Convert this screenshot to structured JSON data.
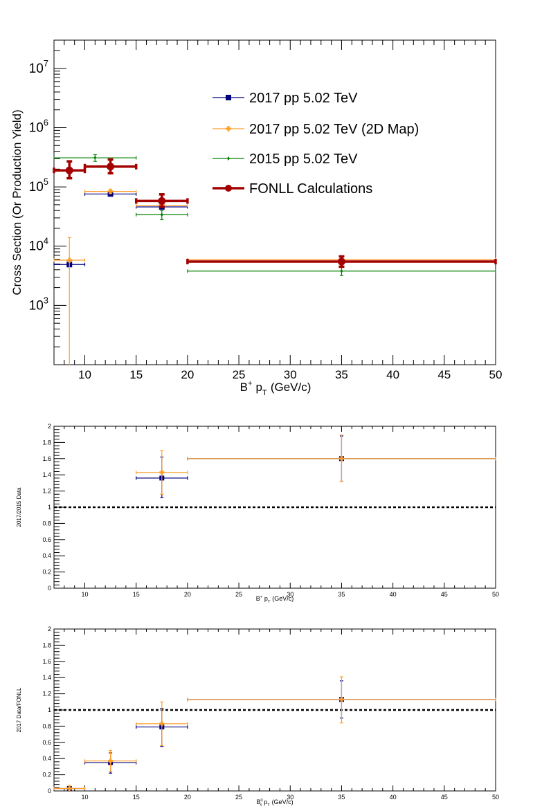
{
  "colors": {
    "blue": "#00007f",
    "orange": "#ff9e2a",
    "green": "#008000",
    "dark_red": "#a30000",
    "frame": "#000000"
  },
  "chart_data": [
    {
      "type": "scatter",
      "panel": "top",
      "xlabel_main": "B",
      "xlabel_sup": "+",
      "xlabel_rest": "p",
      "xlabel_sub": "T",
      "xlabel_unit": "(GeV/c)",
      "ylabel": "Cross Section (Or Production Yield)",
      "xlim": [
        7,
        50
      ],
      "ylim": [
        100,
        30000000
      ],
      "yscale": "log",
      "xticks": [
        10,
        15,
        20,
        25,
        30,
        35,
        40,
        45,
        50
      ],
      "yticks": [
        {
          "base": "10",
          "exp": "3",
          "value": 1000
        },
        {
          "base": "10",
          "exp": "4",
          "value": 10000
        },
        {
          "base": "10",
          "exp": "5",
          "value": 100000
        },
        {
          "base": "10",
          "exp": "6",
          "value": 1000000
        },
        {
          "base": "10",
          "exp": "7",
          "value": 10000000
        }
      ],
      "legend": {
        "placement": "upper-middle"
      },
      "series": [
        {
          "name": "2017 pp 5.02 TeV",
          "color": "blue",
          "marker": "square",
          "points": [
            {
              "x": 8.5,
              "xlo": 7,
              "xhi": 10,
              "y": 4900,
              "ylo": 4700,
              "yhi": 5100
            },
            {
              "x": 12.5,
              "xlo": 10,
              "xhi": 15,
              "y": 76000,
              "ylo": 72000,
              "yhi": 80000
            },
            {
              "x": 17.5,
              "xlo": 15,
              "xhi": 20,
              "y": 46000,
              "ylo": 44000,
              "yhi": 48000
            },
            {
              "x": 35,
              "xlo": 20,
              "xhi": 50,
              "y": 5500,
              "ylo": 5300,
              "yhi": 5700
            }
          ]
        },
        {
          "name": "2017 pp 5.02 TeV (2D Map)",
          "color": "orange",
          "marker": "cross",
          "points": [
            {
              "x": 8.5,
              "xlo": 7,
              "xhi": 10,
              "y": 5800,
              "ylo": 50,
              "yhi": 14000
            },
            {
              "x": 12.5,
              "xlo": 10,
              "xhi": 15,
              "y": 84000,
              "ylo": 78000,
              "yhi": 90000
            },
            {
              "x": 17.5,
              "xlo": 15,
              "xhi": 20,
              "y": 49000,
              "ylo": 46000,
              "yhi": 52000
            },
            {
              "x": 35,
              "xlo": 20,
              "xhi": 50,
              "y": 5900,
              "ylo": 5600,
              "yhi": 6200
            }
          ]
        },
        {
          "name": "2015 pp 5.02 TeV",
          "color": "green",
          "marker": "diamond",
          "points": [
            {
              "x": 11,
              "xlo": 7,
              "xhi": 15,
              "y": 310000,
              "ylo": 270000,
              "yhi": 350000
            },
            {
              "x": 17.5,
              "xlo": 15,
              "xhi": 20,
              "y": 34000,
              "ylo": 28000,
              "yhi": 40000
            },
            {
              "x": 35,
              "xlo": 20,
              "xhi": 50,
              "y": 3800,
              "ylo": 3200,
              "yhi": 4400
            }
          ]
        },
        {
          "name": "FONLL Calculations",
          "color": "dark_red",
          "marker": "circle",
          "thick": true,
          "points": [
            {
              "x": 8.5,
              "xlo": 7,
              "xhi": 10,
              "y": 190000,
              "ylo": 140000,
              "yhi": 270000
            },
            {
              "x": 12.5,
              "xlo": 10,
              "xhi": 15,
              "y": 220000,
              "ylo": 170000,
              "yhi": 290000
            },
            {
              "x": 17.5,
              "xlo": 15,
              "xhi": 20,
              "y": 58000,
              "ylo": 46000,
              "yhi": 75000
            },
            {
              "x": 35,
              "xlo": 20,
              "xhi": 50,
              "y": 5500,
              "ylo": 4500,
              "yhi": 6700
            }
          ]
        }
      ]
    },
    {
      "type": "scatter",
      "panel": "middle",
      "xlabel_main": "B",
      "xlabel_sup": "+",
      "xlabel_rest": "p",
      "xlabel_sub": "T",
      "xlabel_unit": "(GeV/c)",
      "ylabel": "2017/2015 Data",
      "xlim": [
        7,
        50
      ],
      "ylim": [
        0,
        2
      ],
      "xticks": [
        10,
        15,
        20,
        25,
        30,
        35,
        40,
        45,
        50
      ],
      "yticks": [
        "0",
        "0.2",
        "0.4",
        "0.6",
        "0.8",
        "1",
        "1.2",
        "1.4",
        "1.6",
        "1.8",
        "2"
      ],
      "reference_line": 1,
      "series": [
        {
          "color": "blue",
          "marker": "square",
          "points": [
            {
              "x": 17.5,
              "xlo": 15,
              "xhi": 20,
              "y": 1.36,
              "ylo": 1.12,
              "yhi": 1.62
            },
            {
              "x": 35,
              "xlo": 20,
              "xhi": 50,
              "y": 1.6,
              "ylo": 1.32,
              "yhi": 1.88
            }
          ]
        },
        {
          "color": "orange",
          "marker": "cross",
          "points": [
            {
              "x": 17.5,
              "xlo": 15,
              "xhi": 20,
              "y": 1.43,
              "ylo": 1.16,
              "yhi": 1.7
            },
            {
              "x": 35,
              "xlo": 20,
              "xhi": 50,
              "y": 1.6,
              "ylo": 1.32,
              "yhi": 1.89
            }
          ]
        }
      ]
    },
    {
      "type": "scatter",
      "panel": "bottom",
      "xlabel_main": "B",
      "xlabel_sup": "0",
      "xlabel_sub0": "s",
      "xlabel_rest": "p",
      "xlabel_sub": "T",
      "xlabel_unit": "(GeV/c)",
      "ylabel": "2017 Data/FONLL",
      "xlim": [
        7,
        50
      ],
      "ylim": [
        0,
        2
      ],
      "xticks": [
        10,
        15,
        20,
        25,
        30,
        35,
        40,
        45,
        50
      ],
      "yticks": [
        "0",
        "0.2",
        "0.4",
        "0.6",
        "0.8",
        "1",
        "1.2",
        "1.4",
        "1.6",
        "1.8",
        "2"
      ],
      "reference_line": 1,
      "series": [
        {
          "color": "blue",
          "marker": "square",
          "points": [
            {
              "x": 8.5,
              "xlo": 7,
              "xhi": 10,
              "y": 0.03,
              "ylo": 0.01,
              "yhi": 0.05
            },
            {
              "x": 12.5,
              "xlo": 10,
              "xhi": 15,
              "y": 0.35,
              "ylo": 0.22,
              "yhi": 0.47
            },
            {
              "x": 17.5,
              "xlo": 15,
              "xhi": 20,
              "y": 0.79,
              "ylo": 0.55,
              "yhi": 1.02
            },
            {
              "x": 35,
              "xlo": 20,
              "xhi": 50,
              "y": 1.13,
              "ylo": 0.9,
              "yhi": 1.36
            }
          ]
        },
        {
          "color": "orange",
          "marker": "cross",
          "points": [
            {
              "x": 8.5,
              "xlo": 7,
              "xhi": 10,
              "y": 0.03,
              "ylo": 0.0,
              "yhi": 0.07
            },
            {
              "x": 12.5,
              "xlo": 10,
              "xhi": 15,
              "y": 0.37,
              "ylo": 0.24,
              "yhi": 0.5
            },
            {
              "x": 17.5,
              "xlo": 15,
              "xhi": 20,
              "y": 0.83,
              "ylo": 0.56,
              "yhi": 1.1
            },
            {
              "x": 35,
              "xlo": 20,
              "xhi": 50,
              "y": 1.13,
              "ylo": 0.84,
              "yhi": 1.41
            }
          ]
        }
      ]
    }
  ]
}
